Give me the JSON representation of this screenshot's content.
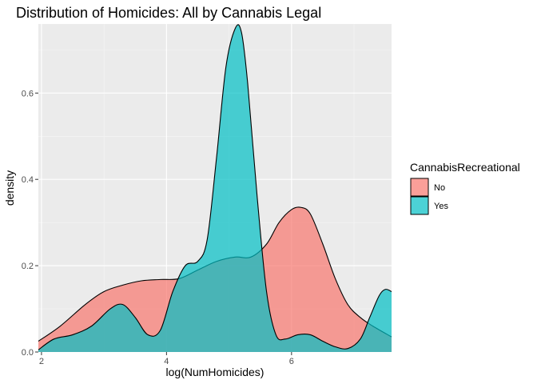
{
  "chart_data": {
    "type": "area",
    "subtype": "density",
    "title": "Distribution of Homicides: All by Cannabis Legal",
    "xlabel": "log(NumHomicides)",
    "ylabel": "density",
    "xlim": [
      1.95,
      7.6
    ],
    "ylim": [
      0,
      0.76
    ],
    "x_ticks": [
      2,
      4,
      6
    ],
    "y_ticks": [
      0.0,
      0.2,
      0.4,
      0.6
    ],
    "y_tick_labels": [
      "0.0",
      "0.2",
      "0.4",
      "0.6"
    ],
    "grid": true,
    "legend_title": "CannabisRecreational",
    "legend_position": "right",
    "series": [
      {
        "name": "No",
        "color": "#F8766D",
        "x": [
          1.95,
          2.3,
          2.7,
          3.0,
          3.3,
          3.6,
          3.9,
          4.2,
          4.5,
          4.8,
          5.1,
          5.35,
          5.6,
          5.8,
          6.0,
          6.15,
          6.3,
          6.5,
          6.7,
          6.9,
          7.1,
          7.3,
          7.6
        ],
        "values": [
          0.025,
          0.06,
          0.11,
          0.14,
          0.155,
          0.165,
          0.168,
          0.17,
          0.19,
          0.21,
          0.22,
          0.22,
          0.25,
          0.3,
          0.33,
          0.335,
          0.32,
          0.25,
          0.17,
          0.11,
          0.08,
          0.06,
          0.035
        ]
      },
      {
        "name": "Yes",
        "color": "#00BFC4",
        "x": [
          1.95,
          2.2,
          2.5,
          2.8,
          3.1,
          3.3,
          3.5,
          3.7,
          3.9,
          4.1,
          4.3,
          4.5,
          4.65,
          4.8,
          4.95,
          5.1,
          5.2,
          5.3,
          5.45,
          5.6,
          5.75,
          5.9,
          6.1,
          6.3,
          6.5,
          6.7,
          6.9,
          7.1,
          7.25,
          7.4,
          7.5,
          7.6
        ],
        "values": [
          0.005,
          0.03,
          0.04,
          0.06,
          0.1,
          0.11,
          0.08,
          0.04,
          0.05,
          0.14,
          0.2,
          0.21,
          0.26,
          0.45,
          0.66,
          0.75,
          0.74,
          0.62,
          0.36,
          0.14,
          0.04,
          0.03,
          0.04,
          0.04,
          0.025,
          0.012,
          0.008,
          0.03,
          0.08,
          0.13,
          0.145,
          0.14
        ]
      }
    ]
  }
}
